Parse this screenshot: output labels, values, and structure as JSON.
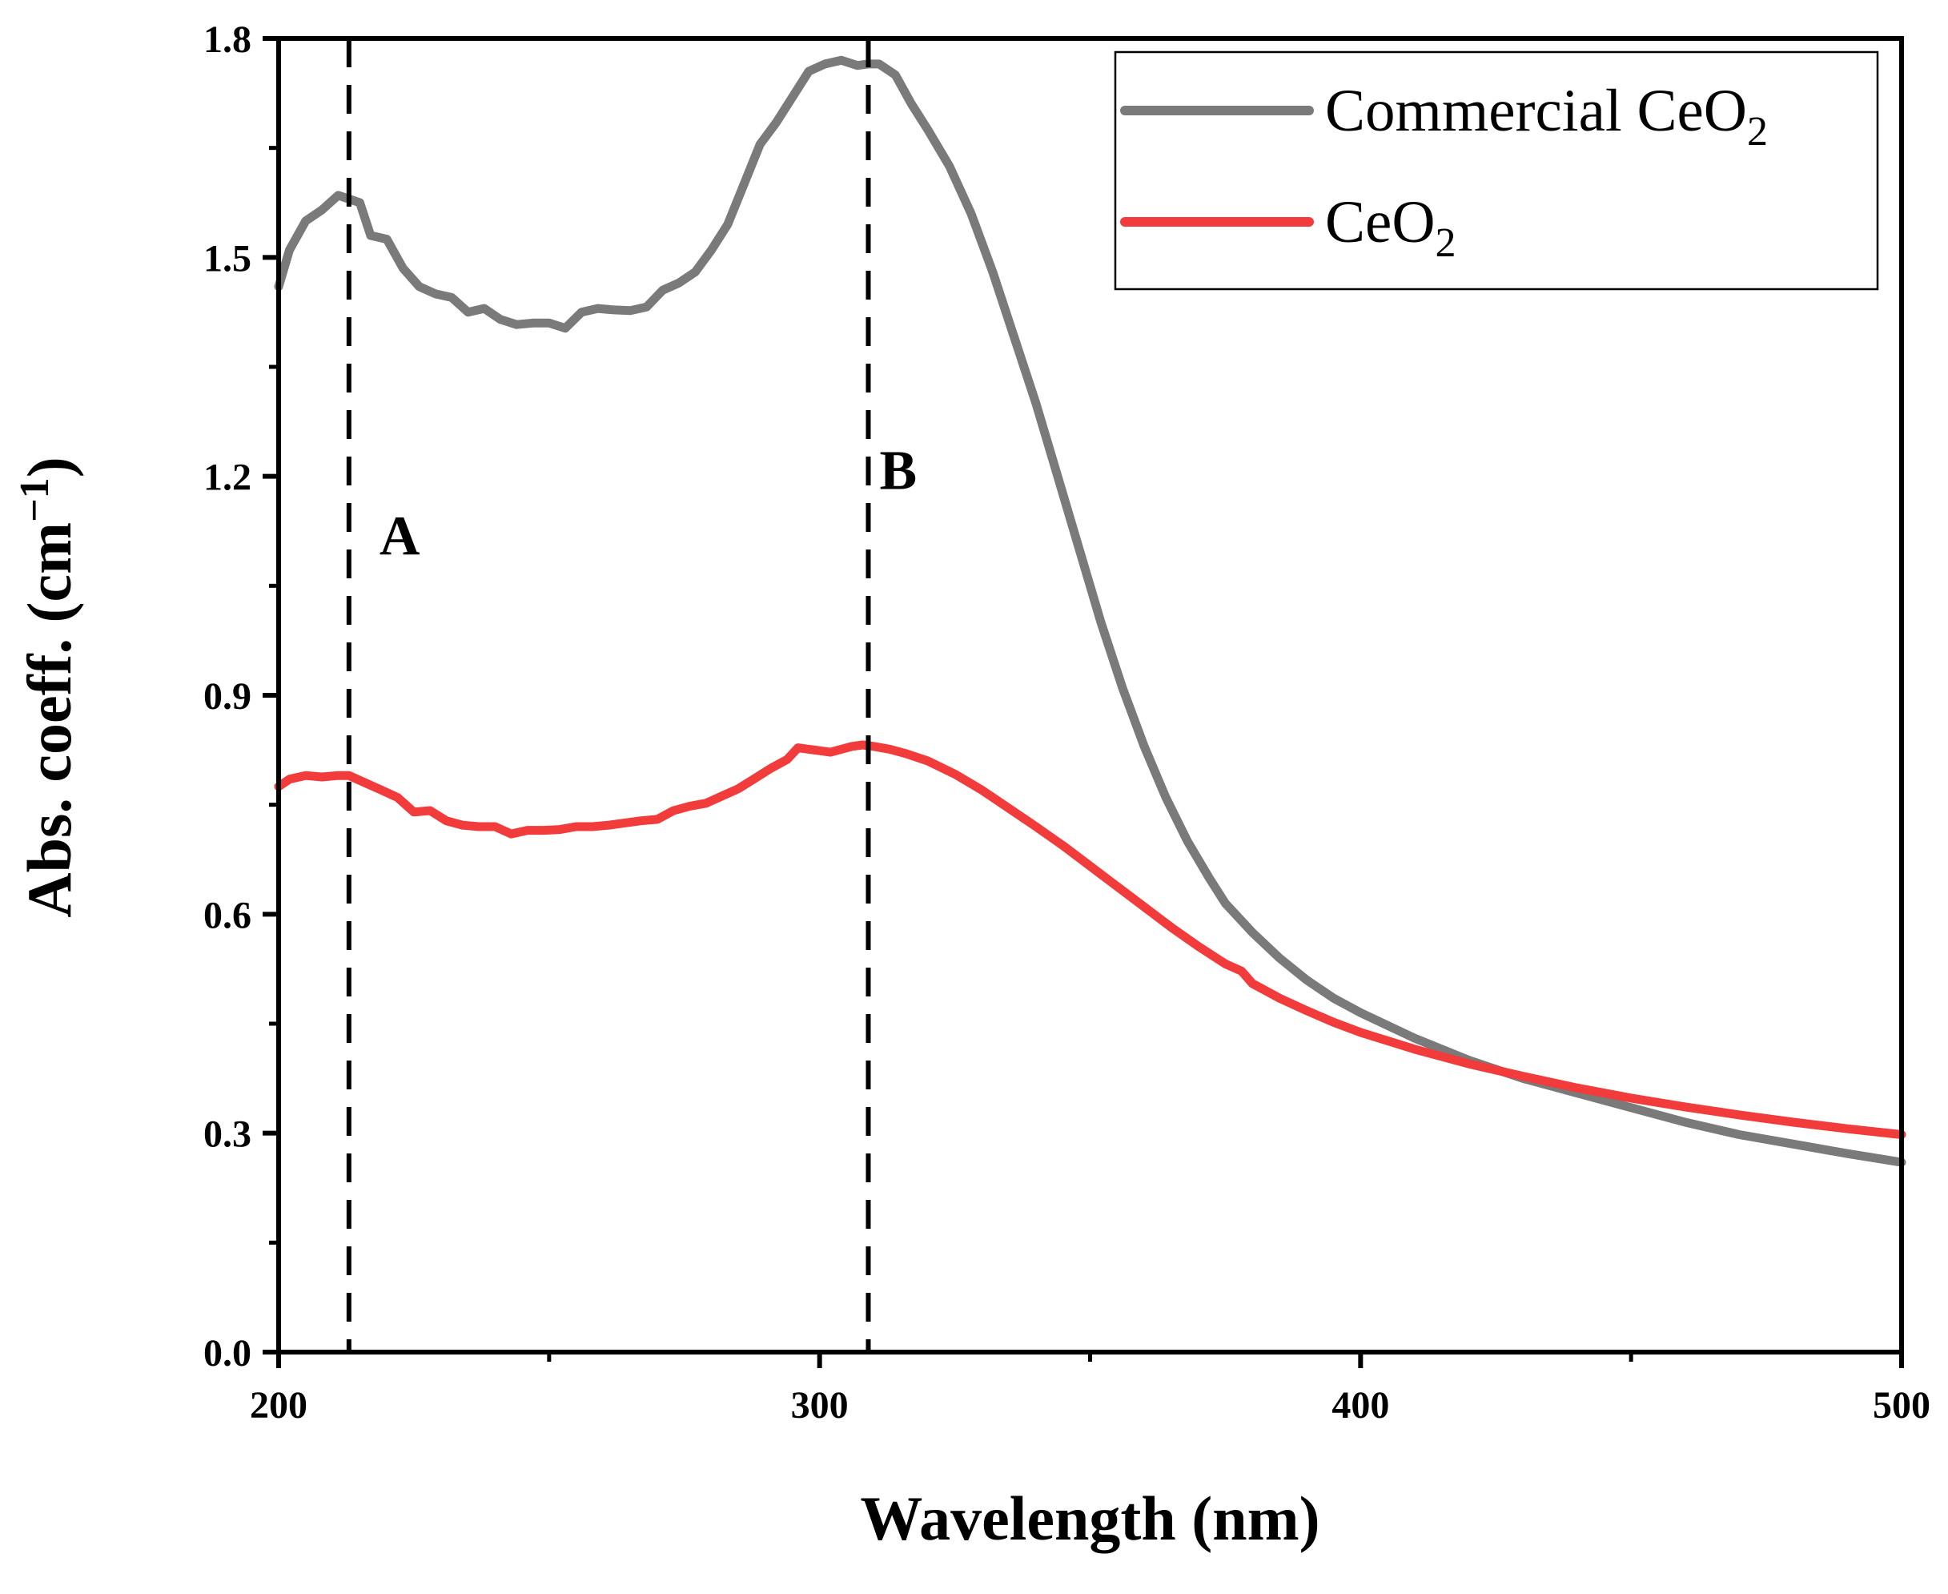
{
  "chart_data": {
    "type": "line",
    "title": "",
    "xlabel": "Wavelength (nm)",
    "ylabel": {
      "main": "Abs. coeff. (cm",
      "superscript": "−1",
      "close": ")"
    },
    "xlim": [
      200,
      500
    ],
    "ylim": [
      0,
      1.8
    ],
    "x_ticks": [
      200,
      300,
      400,
      500
    ],
    "x_tick_labels": [
      "200",
      "300",
      "400",
      "500"
    ],
    "y_ticks": [
      0,
      0.3,
      0.6,
      0.9,
      1.2,
      1.5,
      1.8
    ],
    "y_tick_labels": [
      "0.0",
      "0.3",
      "0.6",
      "0.9",
      "1.2",
      "1.5",
      "1.8"
    ],
    "grid": false,
    "legend_position": "top-right",
    "series": [
      {
        "name": "Commercial CeO2",
        "legend_label": {
          "main": "Commercial CeO",
          "subscript": "2"
        },
        "color": "#7a7a7a",
        "points": [
          [
            200,
            1.46
          ],
          [
            202,
            1.51
          ],
          [
            205,
            1.55
          ],
          [
            208,
            1.565
          ],
          [
            211,
            1.585
          ],
          [
            213,
            1.58
          ],
          [
            215,
            1.575
          ],
          [
            217,
            1.53
          ],
          [
            220,
            1.525
          ],
          [
            223,
            1.485
          ],
          [
            226,
            1.46
          ],
          [
            229,
            1.45
          ],
          [
            232,
            1.445
          ],
          [
            235,
            1.425
          ],
          [
            238,
            1.43
          ],
          [
            241,
            1.415
          ],
          [
            244,
            1.408
          ],
          [
            247,
            1.41
          ],
          [
            250,
            1.41
          ],
          [
            253,
            1.403
          ],
          [
            256,
            1.425
          ],
          [
            259,
            1.43
          ],
          [
            262,
            1.428
          ],
          [
            265,
            1.427
          ],
          [
            268,
            1.432
          ],
          [
            271,
            1.455
          ],
          [
            274,
            1.465
          ],
          [
            277,
            1.48
          ],
          [
            280,
            1.51
          ],
          [
            283,
            1.545
          ],
          [
            286,
            1.6
          ],
          [
            289,
            1.655
          ],
          [
            292,
            1.685
          ],
          [
            295,
            1.72
          ],
          [
            298,
            1.755
          ],
          [
            301,
            1.765
          ],
          [
            304,
            1.77
          ],
          [
            307,
            1.763
          ],
          [
            309,
            1.765
          ],
          [
            311,
            1.765
          ],
          [
            314,
            1.75
          ],
          [
            317,
            1.71
          ],
          [
            320,
            1.675
          ],
          [
            324,
            1.625
          ],
          [
            328,
            1.56
          ],
          [
            332,
            1.48
          ],
          [
            336,
            1.39
          ],
          [
            340,
            1.3
          ],
          [
            344,
            1.2
          ],
          [
            348,
            1.1
          ],
          [
            352,
            1.0
          ],
          [
            356,
            0.91
          ],
          [
            360,
            0.83
          ],
          [
            364,
            0.76
          ],
          [
            368,
            0.7
          ],
          [
            372,
            0.65
          ],
          [
            375,
            0.615
          ],
          [
            380,
            0.575
          ],
          [
            385,
            0.54
          ],
          [
            390,
            0.51
          ],
          [
            395,
            0.485
          ],
          [
            400,
            0.465
          ],
          [
            410,
            0.43
          ],
          [
            420,
            0.4
          ],
          [
            430,
            0.375
          ],
          [
            440,
            0.355
          ],
          [
            450,
            0.335
          ],
          [
            460,
            0.315
          ],
          [
            470,
            0.298
          ],
          [
            480,
            0.285
          ],
          [
            490,
            0.272
          ],
          [
            500,
            0.26
          ]
        ]
      },
      {
        "name": "CeO2",
        "legend_label": {
          "main": "CeO",
          "subscript": "2"
        },
        "color": "#f23b3b",
        "points": [
          [
            200,
            0.775
          ],
          [
            202,
            0.785
          ],
          [
            205,
            0.79
          ],
          [
            208,
            0.788
          ],
          [
            211,
            0.79
          ],
          [
            213,
            0.79
          ],
          [
            216,
            0.78
          ],
          [
            219,
            0.77
          ],
          [
            222,
            0.76
          ],
          [
            225,
            0.74
          ],
          [
            228,
            0.742
          ],
          [
            231,
            0.728
          ],
          [
            234,
            0.722
          ],
          [
            237,
            0.72
          ],
          [
            240,
            0.72
          ],
          [
            243,
            0.71
          ],
          [
            246,
            0.715
          ],
          [
            249,
            0.715
          ],
          [
            252,
            0.716
          ],
          [
            255,
            0.72
          ],
          [
            258,
            0.72
          ],
          [
            261,
            0.722
          ],
          [
            264,
            0.725
          ],
          [
            267,
            0.728
          ],
          [
            270,
            0.73
          ],
          [
            273,
            0.742
          ],
          [
            276,
            0.748
          ],
          [
            279,
            0.752
          ],
          [
            282,
            0.762
          ],
          [
            285,
            0.772
          ],
          [
            288,
            0.786
          ],
          [
            291,
            0.8
          ],
          [
            294,
            0.812
          ],
          [
            296,
            0.828
          ],
          [
            298,
            0.826
          ],
          [
            300,
            0.824
          ],
          [
            302,
            0.822
          ],
          [
            304,
            0.826
          ],
          [
            306,
            0.83
          ],
          [
            308,
            0.832
          ],
          [
            310,
            0.83
          ],
          [
            313,
            0.826
          ],
          [
            316,
            0.82
          ],
          [
            320,
            0.81
          ],
          [
            325,
            0.792
          ],
          [
            330,
            0.77
          ],
          [
            335,
            0.745
          ],
          [
            340,
            0.72
          ],
          [
            345,
            0.694
          ],
          [
            350,
            0.666
          ],
          [
            355,
            0.638
          ],
          [
            360,
            0.61
          ],
          [
            365,
            0.582
          ],
          [
            370,
            0.556
          ],
          [
            375,
            0.532
          ],
          [
            378,
            0.522
          ],
          [
            380,
            0.505
          ],
          [
            385,
            0.485
          ],
          [
            390,
            0.468
          ],
          [
            395,
            0.452
          ],
          [
            400,
            0.438
          ],
          [
            410,
            0.415
          ],
          [
            420,
            0.395
          ],
          [
            430,
            0.378
          ],
          [
            440,
            0.362
          ],
          [
            450,
            0.348
          ],
          [
            460,
            0.336
          ],
          [
            470,
            0.325
          ],
          [
            480,
            0.315
          ],
          [
            490,
            0.306
          ],
          [
            500,
            0.298
          ]
        ]
      }
    ],
    "reference_lines": [
      {
        "label": "A",
        "x": 213
      },
      {
        "label": "B",
        "x": 309
      }
    ]
  }
}
